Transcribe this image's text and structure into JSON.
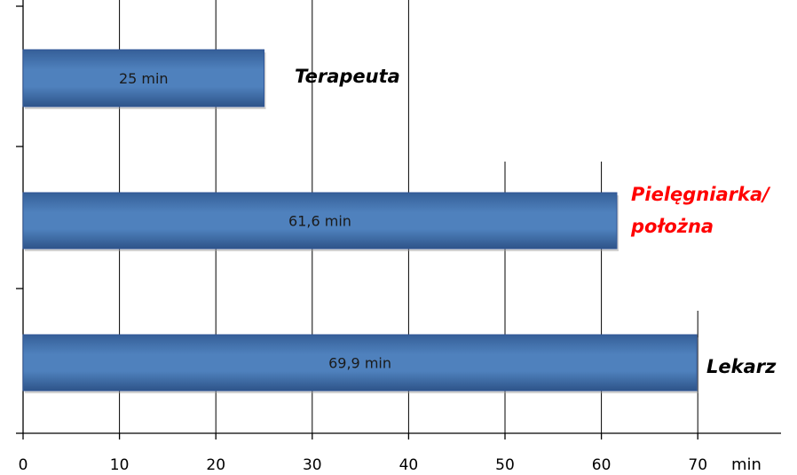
{
  "chart_data": {
    "type": "bar",
    "orientation": "horizontal",
    "categories": [
      "Terapeuta",
      "Pielęgniarka/ położna",
      "Lekarz"
    ],
    "category_label_lines": [
      [
        "Terapeuta"
      ],
      [
        "Pielęgniarka/",
        "położna"
      ],
      [
        "Lekarz"
      ]
    ],
    "values": [
      25,
      61.6,
      69.9
    ],
    "data_labels": [
      "25  min",
      "61,6  min",
      "69,9  min"
    ],
    "xlim": [
      0,
      80
    ],
    "x_ticks": [
      0,
      10,
      20,
      30,
      40,
      50,
      60,
      70
    ],
    "x_unit": "min",
    "grid": "vertical",
    "colors": {
      "bar_fill": "#4f81bd",
      "bar_dark": "#2f5597",
      "category_default": "#000000",
      "category_highlight": "#ff0000",
      "grid": "#000000"
    },
    "highlight_category_index": 1
  }
}
